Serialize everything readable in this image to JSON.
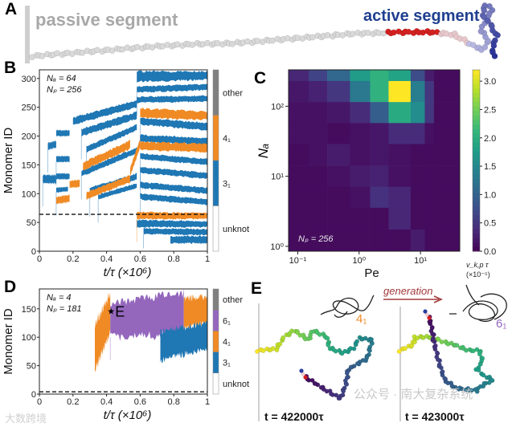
{
  "panel_a": {
    "label": "A",
    "passive_label": "passive segment",
    "active_label": "active segment",
    "colors": {
      "passive": "#a8a8a8",
      "active": "#1f3f8f",
      "red": "#d42020"
    }
  },
  "watermarks": {
    "top": "公众号 · 南大复杂系统",
    "bottom": "大数跨境"
  },
  "chart_data": [
    {
      "id": "B",
      "type": "kymograph",
      "label": "B",
      "xlabel": "t/τ  (×10⁶)",
      "ylabel": "Monomer ID",
      "xlim": [
        0,
        1
      ],
      "ylim": [
        0,
        315
      ],
      "xticks": [
        {
          "v": 0,
          "t": "0"
        },
        {
          "v": 0.2,
          "t": "0.2"
        },
        {
          "v": 0.4,
          "t": "0.4"
        },
        {
          "v": 0.6,
          "t": "0.6"
        },
        {
          "v": 0.8,
          "t": "0.8"
        },
        {
          "v": 1,
          "t": "1"
        }
      ],
      "yticks": [
        {
          "v": 0,
          "t": "0"
        },
        {
          "v": 50,
          "t": "50"
        },
        {
          "v": 100,
          "t": "100"
        },
        {
          "v": 150,
          "t": "150"
        },
        {
          "v": 200,
          "t": "200"
        },
        {
          "v": 250,
          "t": "250"
        },
        {
          "v": 300,
          "t": "300"
        }
      ],
      "annotations": [
        "Nₐ = 64",
        "Nₚ = 256"
      ],
      "dashed_line_y": 64,
      "legend": [
        {
          "name": "other",
          "color": "#7f7f7f"
        },
        {
          "name": "4₁",
          "color": "#f08a24"
        },
        {
          "name": "3₁",
          "color": "#1f77b4"
        },
        {
          "name": "unknot",
          "color": "#ffffff"
        }
      ],
      "bands": [
        {
          "k": "3₁",
          "t": [
            0.02,
            0.1
          ],
          "lo": [
            118,
            118
          ],
          "hi": [
            132,
            132
          ]
        },
        {
          "k": "3₁",
          "t": [
            0.05,
            0.1
          ],
          "lo": [
            176,
            180
          ],
          "hi": [
            188,
            192
          ]
        },
        {
          "k": "3₁",
          "t": [
            0.1,
            0.18
          ],
          "lo": [
            200,
            200
          ],
          "hi": [
            210,
            210
          ]
        },
        {
          "k": "3₁",
          "t": [
            0.1,
            0.18
          ],
          "lo": [
            155,
            155
          ],
          "hi": [
            165,
            165
          ]
        },
        {
          "k": "3₁",
          "t": [
            0.1,
            0.18
          ],
          "lo": [
            125,
            125
          ],
          "hi": [
            135,
            135
          ]
        },
        {
          "k": "3₁",
          "t": [
            0.1,
            0.17
          ],
          "lo": [
            102,
            104
          ],
          "hi": [
            110,
            112
          ]
        },
        {
          "k": "3₁",
          "t": [
            0.2,
            0.58
          ],
          "lo": [
            220,
            250
          ],
          "hi": [
            232,
            262
          ]
        },
        {
          "k": "3₁",
          "t": [
            0.25,
            0.58
          ],
          "lo": [
            200,
            230
          ],
          "hi": [
            212,
            242
          ]
        },
        {
          "k": "3₁",
          "t": [
            0.28,
            0.58
          ],
          "lo": [
            172,
            210
          ],
          "hi": [
            182,
            220
          ]
        },
        {
          "k": "3₁",
          "t": [
            0.25,
            0.58
          ],
          "lo": [
            130,
            170
          ],
          "hi": [
            140,
            180
          ]
        },
        {
          "k": "3₁",
          "t": [
            0.3,
            0.58
          ],
          "lo": [
            100,
            125
          ],
          "hi": [
            110,
            135
          ]
        },
        {
          "k": "3₁",
          "t": [
            0.35,
            0.58
          ],
          "lo": [
            90,
            110
          ],
          "hi": [
            98,
            118
          ]
        },
        {
          "k": "3₁",
          "t": [
            0.58,
            1.0
          ],
          "lo": [
            294,
            298
          ],
          "hi": [
            312,
            312
          ]
        },
        {
          "k": "3₁",
          "t": [
            0.58,
            1.0
          ],
          "lo": [
            276,
            280
          ],
          "hi": [
            286,
            290
          ]
        },
        {
          "k": "3₁",
          "t": [
            0.58,
            1.0
          ],
          "lo": [
            258,
            260
          ],
          "hi": [
            268,
            270
          ]
        },
        {
          "k": "3₁",
          "t": [
            0.6,
            1.0
          ],
          "lo": [
            220,
            210
          ],
          "hi": [
            232,
            222
          ]
        },
        {
          "k": "3₁",
          "t": [
            0.6,
            1.0
          ],
          "lo": [
            190,
            185
          ],
          "hi": [
            202,
            196
          ]
        },
        {
          "k": "3₁",
          "t": [
            0.6,
            1.0
          ],
          "lo": [
            160,
            150
          ],
          "hi": [
            170,
            160
          ]
        },
        {
          "k": "3₁",
          "t": [
            0.6,
            1.0
          ],
          "lo": [
            136,
            126
          ],
          "hi": [
            146,
            136
          ]
        },
        {
          "k": "3₁",
          "t": [
            0.6,
            1.0
          ],
          "lo": [
            110,
            100
          ],
          "hi": [
            120,
            110
          ]
        },
        {
          "k": "3₁",
          "t": [
            0.6,
            1.0
          ],
          "lo": [
            90,
            80
          ],
          "hi": [
            100,
            90
          ]
        },
        {
          "k": "3₁",
          "t": [
            0.58,
            1.0
          ],
          "lo": [
            42,
            42
          ],
          "hi": [
            54,
            52
          ]
        },
        {
          "k": "3₁",
          "t": [
            0.62,
            1.0
          ],
          "lo": [
            30,
            28
          ],
          "hi": [
            40,
            38
          ]
        },
        {
          "k": "3₁",
          "t": [
            0.78,
            1.0
          ],
          "lo": [
            14,
            14
          ],
          "hi": [
            26,
            26
          ]
        },
        {
          "k": "4₁",
          "t": [
            0.1,
            0.18
          ],
          "lo": [
            82,
            86
          ],
          "hi": [
            94,
            98
          ]
        },
        {
          "k": "4₁",
          "t": [
            0.18,
            0.24
          ],
          "lo": [
            110,
            112
          ],
          "hi": [
            122,
            124
          ]
        },
        {
          "k": "4₁",
          "t": [
            0.26,
            0.54
          ],
          "lo": [
            140,
            178
          ],
          "hi": [
            154,
            192
          ]
        },
        {
          "k": "4₁",
          "t": [
            0.28,
            0.54
          ],
          "lo": [
            90,
            120
          ],
          "hi": [
            102,
            132
          ]
        },
        {
          "k": "4₁",
          "t": [
            0.54,
            0.6
          ],
          "lo": [
            130,
            180
          ],
          "hi": [
            145,
            195
          ]
        },
        {
          "k": "4₁",
          "t": [
            0.6,
            1.0
          ],
          "lo": [
            232,
            228
          ],
          "hi": [
            248,
            242
          ]
        },
        {
          "k": "4₁",
          "t": [
            0.6,
            1.0
          ],
          "lo": [
            176,
            172
          ],
          "hi": [
            190,
            186
          ]
        },
        {
          "k": "4₁",
          "t": [
            0.58,
            1.0
          ],
          "lo": [
            56,
            56
          ],
          "hi": [
            68,
            66
          ]
        }
      ]
    },
    {
      "id": "C",
      "type": "heatmap",
      "label": "C",
      "xlabel": "Pe",
      "ylabel": "Nₐ",
      "xscale": "log",
      "yscale": "log",
      "xticks": [
        {
          "v": -1,
          "t": "10⁻¹"
        },
        {
          "v": 0,
          "t": "10⁰"
        },
        {
          "v": 1,
          "t": "10¹"
        }
      ],
      "yticks": [
        {
          "v": 0,
          "t": "10⁰"
        },
        {
          "v": 1,
          "t": "10¹"
        },
        {
          "v": 2,
          "t": "10²"
        }
      ],
      "annotation": "Nₚ = 256",
      "colorbar_label": "v_k,p τ",
      "colorbar_unit": "(×10⁻⁵)",
      "colorbar_ticks": [
        {
          "v": 0,
          "t": "0.0"
        },
        {
          "v": 0.5,
          "t": "0.5"
        },
        {
          "v": 1,
          "t": "1.0"
        },
        {
          "v": 1.5,
          "t": "1.5"
        },
        {
          "v": 2,
          "t": "2.0"
        },
        {
          "v": 2.5,
          "t": "2.5"
        },
        {
          "v": 3,
          "t": "3.0"
        }
      ],
      "vrange": [
        0,
        3.2
      ],
      "log_pe_edges": [
        -1.15,
        -0.82,
        -0.52,
        -0.15,
        0.18,
        0.48,
        0.84,
        1.07,
        1.22,
        1.64
      ],
      "log_na_edges": [
        2.52,
        2.36,
        2.06,
        1.76,
        1.46,
        1.15,
        0.85,
        0.55,
        0.24,
        -0.07
      ],
      "values": [
        [
          0.35,
          0.65,
          1.05,
          1.75,
          2.05,
          1.85,
          0.75,
          0.25,
          0.1
        ],
        [
          0.2,
          0.3,
          0.5,
          1.3,
          2.05,
          3.2,
          1.35,
          0.5,
          0.1
        ],
        [
          0.15,
          0.15,
          0.2,
          0.4,
          0.95,
          1.95,
          1.55,
          0.5,
          0.1
        ],
        [
          0.15,
          0.15,
          0.1,
          0.15,
          0.2,
          0.4,
          0.4,
          0.15,
          0.1
        ],
        [
          0.1,
          0.15,
          0.25,
          0.15,
          0.2,
          0.15,
          0.1,
          0.1,
          0.1
        ],
        [
          0.1,
          0.1,
          0.15,
          0.25,
          0.3,
          0.15,
          0.1,
          0.1,
          0.1
        ],
        [
          0.1,
          0.1,
          0.1,
          0.15,
          0.45,
          0.35,
          0.1,
          0.1,
          0.1
        ],
        [
          0.1,
          0.1,
          0.1,
          0.1,
          0.1,
          0.35,
          0.1,
          0.1,
          0.1
        ],
        [
          0.1,
          0.1,
          0.1,
          0.1,
          0.1,
          0.1,
          0.25,
          0.1,
          0.1
        ]
      ]
    },
    {
      "id": "D",
      "type": "kymograph",
      "label": "D",
      "xlabel": "t/τ  (×10⁶)",
      "ylabel": "Monomer ID",
      "xlim": [
        0,
        1
      ],
      "ylim": [
        0,
        185
      ],
      "xticks": [
        {
          "v": 0,
          "t": "0"
        },
        {
          "v": 0.2,
          "t": "0.2"
        },
        {
          "v": 0.4,
          "t": "0.4"
        },
        {
          "v": 0.6,
          "t": "0.6"
        },
        {
          "v": 0.8,
          "t": "0.8"
        },
        {
          "v": 1,
          "t": "1"
        }
      ],
      "yticks": [
        {
          "v": 0,
          "t": "0"
        },
        {
          "v": 50,
          "t": "50"
        },
        {
          "v": 100,
          "t": "100"
        },
        {
          "v": 150,
          "t": "150"
        }
      ],
      "annotations": [
        "Nₐ = 4",
        "Nₚ = 181"
      ],
      "marker": {
        "t": 0.422,
        "y": 146,
        "text": "E"
      },
      "dashed_line_y": 4,
      "legend": [
        {
          "name": "other",
          "color": "#7f7f7f"
        },
        {
          "name": "6₁",
          "color": "#9467bd"
        },
        {
          "name": "4₁",
          "color": "#f08a24"
        },
        {
          "name": "3₁",
          "color": "#1f77b4"
        },
        {
          "name": "unknot",
          "color": "#ffffff"
        }
      ],
      "bands": [
        {
          "k": "4₁",
          "t": [
            0.33,
            0.422
          ],
          "lo": [
            40,
            110
          ],
          "hi": [
            120,
            178
          ]
        },
        {
          "k": "6₁",
          "t": [
            0.422,
            0.86
          ],
          "lo": [
            100,
            105
          ],
          "hi": [
            160,
            178
          ]
        },
        {
          "k": "4₁",
          "t": [
            0.86,
            1.0
          ],
          "lo": [
            118,
            125
          ],
          "hi": [
            168,
            172
          ]
        },
        {
          "k": "3₁",
          "t": [
            0.72,
            1.0
          ],
          "lo": [
            60,
            80
          ],
          "hi": [
            110,
            125
          ]
        }
      ]
    }
  ],
  "panel_e": {
    "label": "E",
    "arrow_label": "generation",
    "left": {
      "time": "t = 422000τ",
      "knot": "4₁",
      "knot_color": "#f08a24"
    },
    "right": {
      "time": "t = 423000τ",
      "knot": "6₁",
      "knot_color": "#9467bd"
    }
  }
}
